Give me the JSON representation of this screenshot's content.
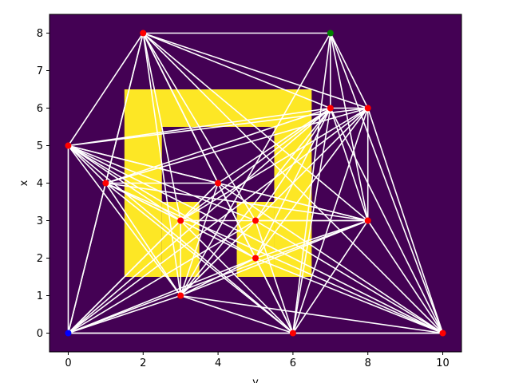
{
  "chart_data": {
    "type": "scatter",
    "title": "",
    "xlabel": "y",
    "ylabel": "x",
    "xlim": [
      -0.5,
      10.5
    ],
    "ylim": [
      -0.5,
      8.5
    ],
    "xticks": [
      0,
      2,
      4,
      6,
      8,
      10
    ],
    "yticks": [
      0,
      1,
      2,
      3,
      4,
      5,
      6,
      7,
      8
    ],
    "grid": false,
    "colors": {
      "background": "#440154",
      "obstacle": "#fde725",
      "edge": "#ffffff",
      "node": "#ff0000",
      "start": "#0000ff",
      "goal": "#008000"
    },
    "obstacles": [
      {
        "x0": 1.5,
        "x1": 6.5,
        "y0": 5.5,
        "y1": 6.5
      },
      {
        "x0": 1.5,
        "x1": 2.5,
        "y0": 1.5,
        "y1": 5.5
      },
      {
        "x0": 2.5,
        "x1": 3.5,
        "y0": 1.5,
        "y1": 3.5
      },
      {
        "x0": 5.5,
        "x1": 6.5,
        "y0": 1.5,
        "y1": 5.5
      },
      {
        "x0": 4.5,
        "x1": 5.5,
        "y0": 1.5,
        "y1": 3.5
      }
    ],
    "nodes": [
      {
        "x": 0,
        "y": 0,
        "role": "start"
      },
      {
        "x": 7,
        "y": 8,
        "role": "goal"
      },
      {
        "x": 2,
        "y": 8,
        "role": "sample"
      },
      {
        "x": 0,
        "y": 5,
        "role": "sample"
      },
      {
        "x": 1,
        "y": 4,
        "role": "sample"
      },
      {
        "x": 4,
        "y": 4,
        "role": "sample"
      },
      {
        "x": 3,
        "y": 3,
        "role": "sample"
      },
      {
        "x": 5,
        "y": 3,
        "role": "sample"
      },
      {
        "x": 5,
        "y": 2,
        "role": "sample"
      },
      {
        "x": 3,
        "y": 1,
        "role": "sample"
      },
      {
        "x": 6,
        "y": 0,
        "role": "sample"
      },
      {
        "x": 10,
        "y": 0,
        "role": "sample"
      },
      {
        "x": 7,
        "y": 6,
        "role": "sample"
      },
      {
        "x": 8,
        "y": 6,
        "role": "sample"
      },
      {
        "x": 8,
        "y": 3,
        "role": "sample"
      }
    ],
    "edges": [
      [
        0,
        3
      ],
      [
        0,
        4
      ],
      [
        0,
        5
      ],
      [
        0,
        6
      ],
      [
        0,
        7
      ],
      [
        0,
        8
      ],
      [
        0,
        9
      ],
      [
        0,
        10
      ],
      [
        0,
        11
      ],
      [
        0,
        12
      ],
      [
        0,
        13
      ],
      [
        0,
        14
      ],
      [
        0,
        2
      ],
      [
        1,
        2
      ],
      [
        1,
        12
      ],
      [
        1,
        13
      ],
      [
        1,
        14
      ],
      [
        1,
        10
      ],
      [
        1,
        11
      ],
      [
        1,
        9
      ],
      [
        2,
        3
      ],
      [
        2,
        4
      ],
      [
        2,
        5
      ],
      [
        2,
        6
      ],
      [
        2,
        7
      ],
      [
        2,
        8
      ],
      [
        2,
        9
      ],
      [
        2,
        10
      ],
      [
        2,
        12
      ],
      [
        2,
        13
      ],
      [
        2,
        14
      ],
      [
        2,
        11
      ],
      [
        3,
        4
      ],
      [
        3,
        5
      ],
      [
        3,
        6
      ],
      [
        3,
        7
      ],
      [
        3,
        8
      ],
      [
        3,
        9
      ],
      [
        3,
        10
      ],
      [
        3,
        12
      ],
      [
        3,
        13
      ],
      [
        3,
        14
      ],
      [
        3,
        11
      ],
      [
        4,
        5
      ],
      [
        4,
        6
      ],
      [
        4,
        8
      ],
      [
        4,
        9
      ],
      [
        4,
        10
      ],
      [
        4,
        12
      ],
      [
        4,
        13
      ],
      [
        4,
        14
      ],
      [
        4,
        11
      ],
      [
        5,
        6
      ],
      [
        5,
        8
      ],
      [
        5,
        9
      ],
      [
        5,
        10
      ],
      [
        5,
        12
      ],
      [
        5,
        14
      ],
      [
        5,
        11
      ],
      [
        6,
        9
      ],
      [
        6,
        12
      ],
      [
        6,
        13
      ],
      [
        6,
        14
      ],
      [
        6,
        10
      ],
      [
        7,
        9
      ],
      [
        7,
        10
      ],
      [
        7,
        12
      ],
      [
        7,
        14
      ],
      [
        7,
        11
      ],
      [
        8,
        9
      ],
      [
        8,
        10
      ],
      [
        8,
        11
      ],
      [
        8,
        12
      ],
      [
        8,
        13
      ],
      [
        8,
        14
      ],
      [
        9,
        10
      ],
      [
        9,
        11
      ],
      [
        9,
        12
      ],
      [
        9,
        13
      ],
      [
        9,
        14
      ],
      [
        10,
        11
      ],
      [
        10,
        12
      ],
      [
        10,
        13
      ],
      [
        10,
        14
      ],
      [
        11,
        12
      ],
      [
        11,
        13
      ],
      [
        11,
        14
      ],
      [
        12,
        13
      ],
      [
        12,
        14
      ],
      [
        13,
        14
      ]
    ]
  }
}
